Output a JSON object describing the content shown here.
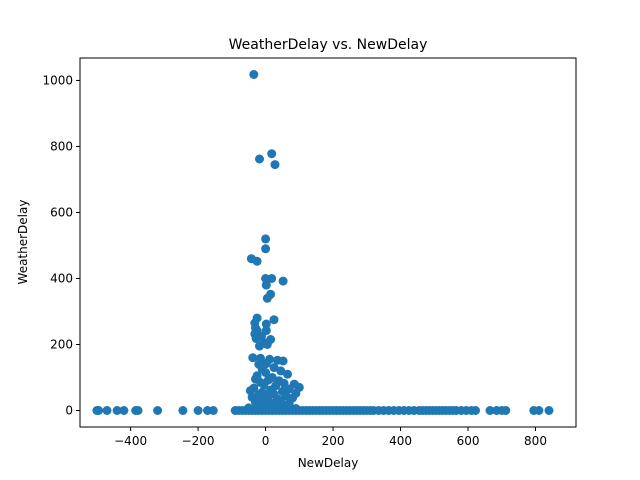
{
  "chart_data": {
    "type": "scatter",
    "title": "WeatherDelay vs. NewDelay",
    "xlabel": "NewDelay",
    "ylabel": "WeatherDelay",
    "xlim": [
      -550,
      920
    ],
    "ylim": [
      -50,
      1068
    ],
    "xticks": [
      -400,
      -200,
      0,
      200,
      400,
      600,
      800
    ],
    "yticks": [
      0,
      200,
      400,
      600,
      800,
      1000
    ],
    "grid": false,
    "marker_color": "#1f77b4",
    "series": [
      {
        "points": [
          [
            -35,
            1018
          ],
          [
            18,
            778
          ],
          [
            -18,
            762
          ],
          [
            28,
            745
          ],
          [
            0,
            520
          ],
          [
            0,
            490
          ],
          [
            -42,
            460
          ],
          [
            -25,
            452
          ],
          [
            0,
            400
          ],
          [
            18,
            400
          ],
          [
            52,
            392
          ],
          [
            2,
            380
          ],
          [
            15,
            352
          ],
          [
            5,
            340
          ],
          [
            -25,
            280
          ],
          [
            25,
            275
          ],
          [
            -32,
            265
          ],
          [
            2,
            262
          ],
          [
            -30,
            250
          ],
          [
            -25,
            242
          ],
          [
            2,
            242
          ],
          [
            -32,
            232
          ],
          [
            -12,
            225
          ],
          [
            -28,
            218
          ],
          [
            15,
            215
          ],
          [
            -5,
            205
          ],
          [
            5,
            200
          ],
          [
            -18,
            195
          ],
          [
            -38,
            160
          ],
          [
            -15,
            158
          ],
          [
            12,
            155
          ],
          [
            35,
            152
          ],
          [
            52,
            150
          ],
          [
            2,
            142
          ],
          [
            -20,
            140
          ],
          [
            25,
            130
          ],
          [
            -10,
            125
          ],
          [
            45,
            120
          ],
          [
            0,
            115
          ],
          [
            65,
            110
          ],
          [
            -25,
            105
          ],
          [
            20,
            100
          ],
          [
            -30,
            95
          ],
          [
            8,
            92
          ],
          [
            40,
            90
          ],
          [
            -15,
            85
          ],
          [
            55,
            82
          ],
          [
            85,
            80
          ],
          [
            -5,
            78
          ],
          [
            30,
            75
          ],
          [
            100,
            70
          ],
          [
            -35,
            68
          ],
          [
            70,
            65
          ],
          [
            15,
            62
          ],
          [
            -45,
            60
          ],
          [
            50,
            58
          ],
          [
            -10,
            55
          ],
          [
            90,
            52
          ],
          [
            25,
            50
          ],
          [
            -20,
            48
          ],
          [
            60,
            45
          ],
          [
            5,
            42
          ],
          [
            -40,
            40
          ],
          [
            80,
            38
          ],
          [
            35,
            35
          ],
          [
            -15,
            32
          ],
          [
            45,
            30
          ],
          [
            10,
            28
          ],
          [
            -30,
            25
          ],
          [
            70,
            22
          ],
          [
            20,
            20
          ],
          [
            -5,
            18
          ],
          [
            55,
            15
          ],
          [
            -25,
            12
          ],
          [
            30,
            10
          ],
          [
            -50,
            8
          ],
          [
            90,
            6
          ],
          [
            15,
            5
          ],
          [
            -10,
            3
          ],
          [
            60,
            2
          ],
          [
            -500,
            0
          ],
          [
            -495,
            0
          ],
          [
            -470,
            0
          ],
          [
            -440,
            0
          ],
          [
            -420,
            0
          ],
          [
            -385,
            0
          ],
          [
            -378,
            0
          ],
          [
            -320,
            0
          ],
          [
            -245,
            0
          ],
          [
            -200,
            0
          ],
          [
            -172,
            0
          ],
          [
            -155,
            0
          ],
          [
            -90,
            0
          ],
          [
            -80,
            0
          ],
          [
            -70,
            0
          ],
          [
            -60,
            0
          ],
          [
            -50,
            0
          ],
          [
            -40,
            0
          ],
          [
            -30,
            0
          ],
          [
            -20,
            0
          ],
          [
            -10,
            0
          ],
          [
            0,
            0
          ],
          [
            10,
            0
          ],
          [
            20,
            0
          ],
          [
            30,
            0
          ],
          [
            40,
            0
          ],
          [
            50,
            0
          ],
          [
            60,
            0
          ],
          [
            70,
            0
          ],
          [
            80,
            0
          ],
          [
            90,
            0
          ],
          [
            100,
            0
          ],
          [
            110,
            0
          ],
          [
            120,
            0
          ],
          [
            130,
            0
          ],
          [
            140,
            0
          ],
          [
            150,
            0
          ],
          [
            160,
            0
          ],
          [
            170,
            0
          ],
          [
            180,
            0
          ],
          [
            190,
            0
          ],
          [
            200,
            0
          ],
          [
            210,
            0
          ],
          [
            220,
            0
          ],
          [
            230,
            0
          ],
          [
            240,
            0
          ],
          [
            250,
            0
          ],
          [
            260,
            0
          ],
          [
            270,
            0
          ],
          [
            280,
            0
          ],
          [
            290,
            0
          ],
          [
            300,
            0
          ],
          [
            310,
            0
          ],
          [
            320,
            0
          ],
          [
            335,
            0
          ],
          [
            350,
            0
          ],
          [
            365,
            0
          ],
          [
            380,
            0
          ],
          [
            395,
            0
          ],
          [
            410,
            0
          ],
          [
            425,
            0
          ],
          [
            440,
            0
          ],
          [
            455,
            0
          ],
          [
            465,
            0
          ],
          [
            475,
            0
          ],
          [
            485,
            0
          ],
          [
            495,
            0
          ],
          [
            505,
            0
          ],
          [
            515,
            0
          ],
          [
            525,
            0
          ],
          [
            535,
            0
          ],
          [
            545,
            0
          ],
          [
            555,
            0
          ],
          [
            565,
            0
          ],
          [
            580,
            0
          ],
          [
            595,
            0
          ],
          [
            610,
            0
          ],
          [
            622,
            0
          ],
          [
            665,
            0
          ],
          [
            685,
            0
          ],
          [
            700,
            0
          ],
          [
            712,
            0
          ],
          [
            795,
            0
          ],
          [
            810,
            0
          ],
          [
            840,
            0
          ]
        ]
      }
    ]
  }
}
